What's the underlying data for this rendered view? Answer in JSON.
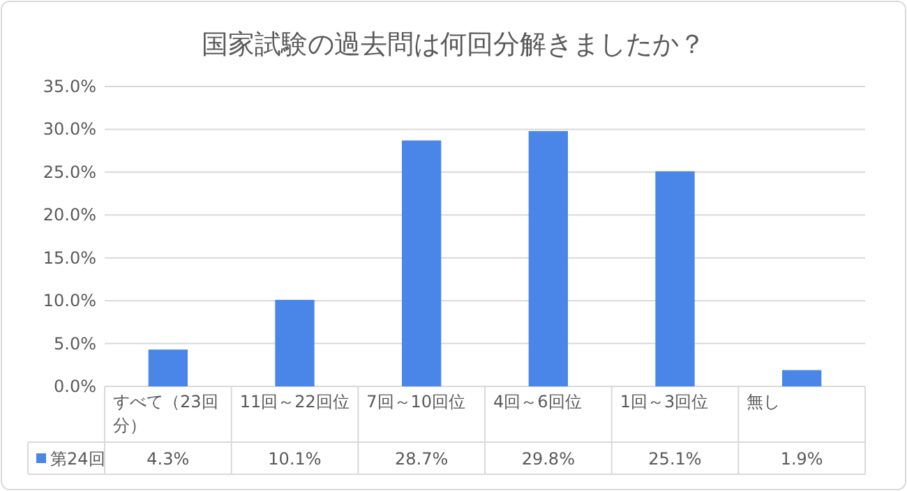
{
  "chart_data": {
    "type": "bar",
    "title": "国家試験の過去問は何回分解きましたか？",
    "categories": [
      "すべて（23回分）",
      "11回～22回位",
      "7回～10回位",
      "4回～6回位",
      "1回～3回位",
      "無し"
    ],
    "series": [
      {
        "name": "第24回",
        "color": "#4a86e8",
        "values": [
          4.3,
          10.1,
          28.7,
          29.8,
          25.1,
          1.9
        ],
        "value_labels": [
          "4.3%",
          "10.1%",
          "28.7%",
          "29.8%",
          "25.1%",
          "1.9%"
        ]
      }
    ],
    "ylim": [
      0,
      35
    ],
    "yticks": [
      {
        "value": 0,
        "label": "0.0%"
      },
      {
        "value": 5,
        "label": "5.0%"
      },
      {
        "value": 10,
        "label": "10.0%"
      },
      {
        "value": 15,
        "label": "15.0%"
      },
      {
        "value": 20,
        "label": "20.0%"
      },
      {
        "value": 25,
        "label": "25.0%"
      },
      {
        "value": 30,
        "label": "30.0%"
      },
      {
        "value": 35,
        "label": "35.0%"
      }
    ],
    "grid": "y",
    "legend": "bottom"
  }
}
